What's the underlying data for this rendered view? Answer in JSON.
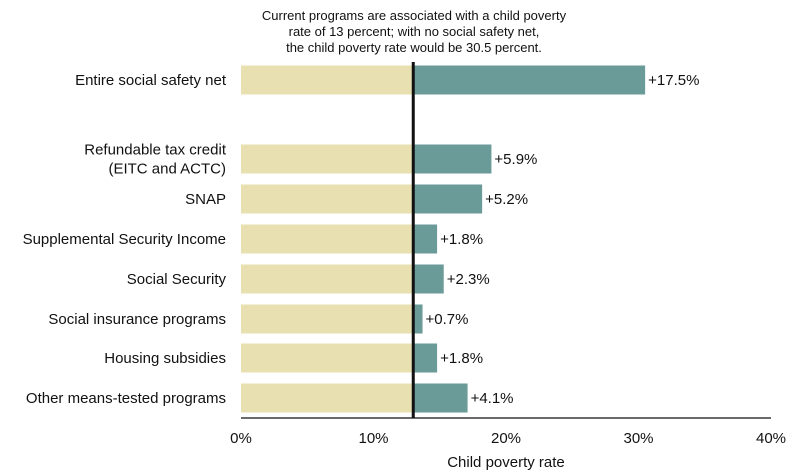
{
  "chart_data": {
    "type": "bar",
    "orientation": "horizontal",
    "annotation": [
      "Current programs are associated with a child poverty",
      "rate of 13 percent; with no social safety net,",
      "the child poverty rate would be 30.5 percent."
    ],
    "baseline_rate": 13,
    "xlabel": "Child poverty rate",
    "xlim": [
      0,
      40
    ],
    "ticks": [
      0,
      10,
      20,
      30,
      40
    ],
    "tick_labels": [
      "0%",
      "10%",
      "20%",
      "30%",
      "40%"
    ],
    "categories": [
      "Entire social safety net",
      "Refundable tax credit\n(EITC and ACTC)",
      "SNAP",
      "Supplemental Security Income",
      "Social Security",
      "Social insurance programs",
      "Housing subsidies",
      "Other means-tested programs"
    ],
    "values": [
      17.5,
      5.9,
      5.2,
      1.8,
      2.3,
      0.7,
      1.8,
      4.1
    ],
    "value_labels": [
      "+17.5%",
      "+5.9%",
      "+5.2%",
      "+1.8%",
      "+2.3%",
      "+0.7%",
      "+1.8%",
      "+4.1%"
    ],
    "colors": {
      "baseline": "#e8e0b0",
      "increase": "#6a9b98",
      "axis": "#111111"
    }
  }
}
